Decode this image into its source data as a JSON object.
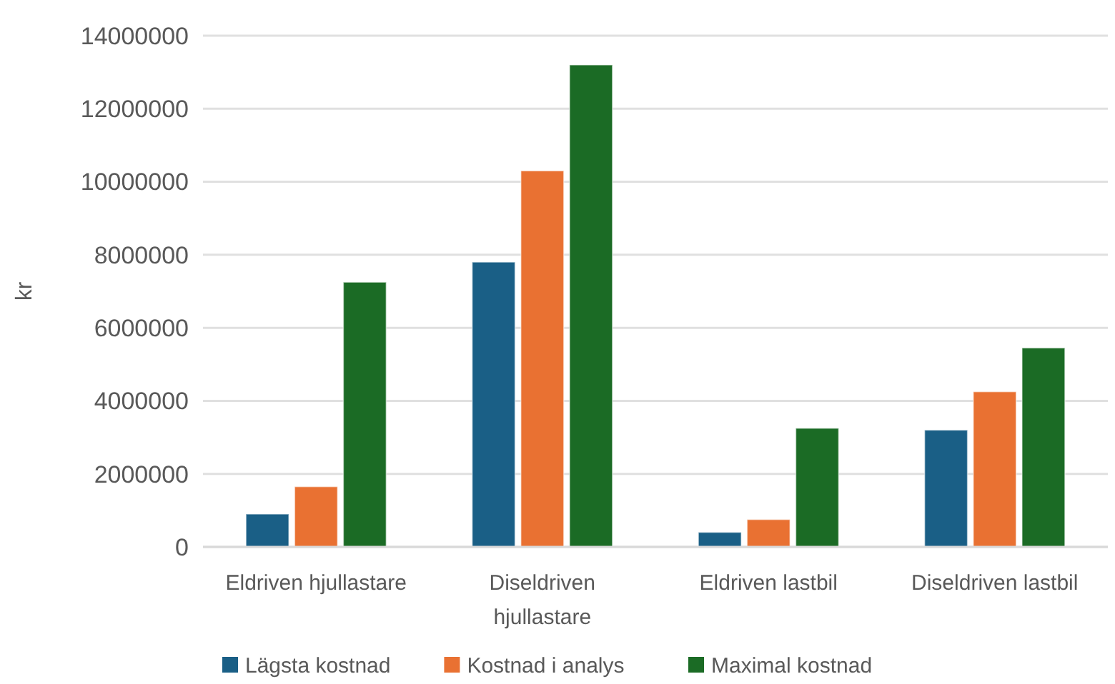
{
  "chart_data": {
    "type": "bar",
    "ylabel": "kr",
    "categories": [
      "Eldriven hjullastare",
      "Diseldriven hjullastare",
      "Eldriven lastbil",
      "Diseldriven lastbil"
    ],
    "series": [
      {
        "name": "Lägsta kostnad",
        "color": "#1a5f86",
        "values": [
          900000,
          7800000,
          400000,
          3200000
        ]
      },
      {
        "name": "Kostnad i analys",
        "color": "#e97132",
        "values": [
          1650000,
          10300000,
          750000,
          4250000
        ]
      },
      {
        "name": "Maximal kostnad",
        "color": "#1b6b25",
        "values": [
          7250000,
          13200000,
          3250000,
          5450000
        ]
      }
    ],
    "ylim": [
      0,
      14000000
    ],
    "yticks": [
      0,
      2000000,
      4000000,
      6000000,
      8000000,
      10000000,
      12000000,
      14000000
    ],
    "grid": "y",
    "legend": "bottom"
  }
}
